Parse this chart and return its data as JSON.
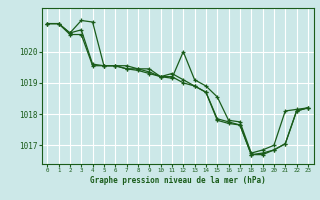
{
  "title": "Graphe pression niveau de la mer (hPa)",
  "bg_color": "#cce8e8",
  "grid_color": "#ffffff",
  "line_color": "#1a5c1a",
  "xlim": [
    -0.5,
    23.5
  ],
  "ylim": [
    1016.4,
    1021.4
  ],
  "yticks": [
    1017,
    1018,
    1019,
    1020
  ],
  "xticks": [
    0,
    1,
    2,
    3,
    4,
    5,
    6,
    7,
    8,
    9,
    10,
    11,
    12,
    13,
    14,
    15,
    16,
    17,
    18,
    19,
    20,
    21,
    22,
    23
  ],
  "series": [
    [
      1020.9,
      1020.9,
      1020.6,
      1021.0,
      1020.95,
      1019.55,
      1019.55,
      1019.55,
      1019.45,
      1019.45,
      1019.2,
      1019.15,
      1020.0,
      1019.1,
      1018.9,
      1018.55,
      1017.8,
      1017.75,
      1016.75,
      1016.85,
      1017.0,
      1018.1,
      1018.15,
      1018.2
    ],
    [
      1020.9,
      1020.9,
      1020.6,
      1020.7,
      1019.6,
      1019.55,
      1019.55,
      1019.45,
      1019.45,
      1019.35,
      1019.2,
      1019.3,
      1019.1,
      1018.9,
      1018.7,
      1017.85,
      1017.75,
      1017.65,
      1016.7,
      1016.75,
      1016.85,
      1017.05,
      1018.1,
      1018.2
    ],
    [
      1020.9,
      1020.9,
      1020.55,
      1020.55,
      1019.55,
      1019.55,
      1019.55,
      1019.45,
      1019.4,
      1019.3,
      1019.2,
      1019.2,
      1019.0,
      1018.9,
      1018.7,
      1017.8,
      1017.7,
      1017.65,
      1016.7,
      1016.7,
      1016.85,
      1017.05,
      1018.1,
      1018.2
    ]
  ]
}
